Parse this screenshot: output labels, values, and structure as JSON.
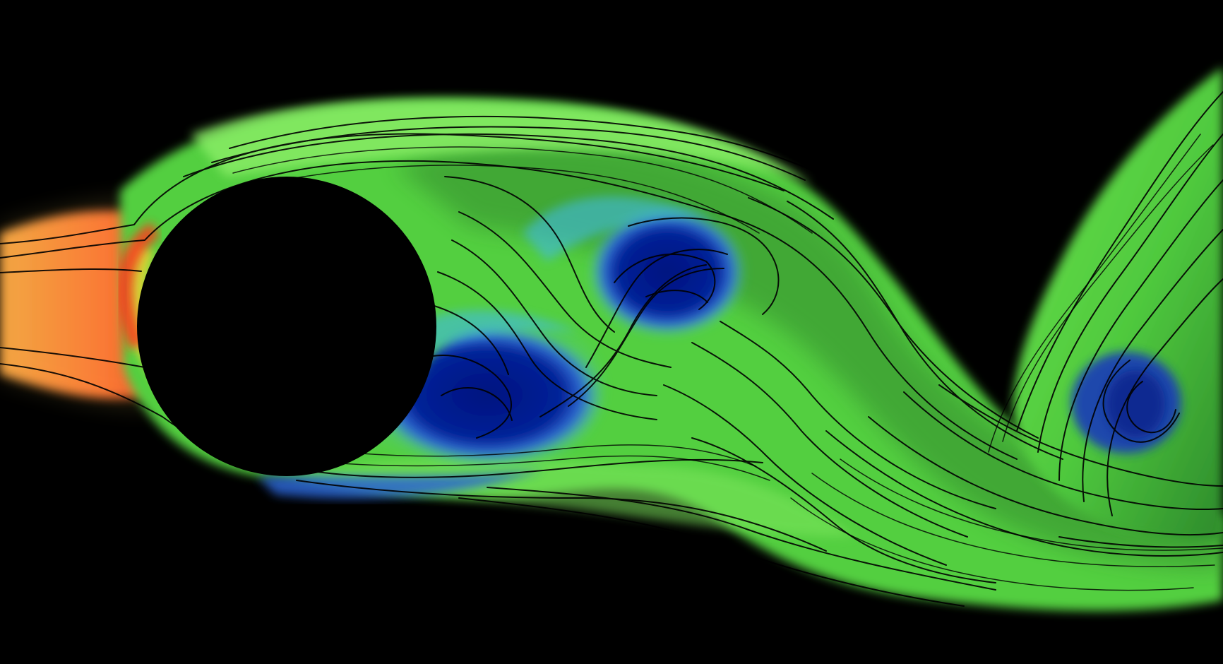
{
  "colors": {
    "background": "#000000",
    "obstacle": "#000000",
    "streamline": "#000000",
    "inflow_orange": "#f39a38",
    "inflow_red": "#e63420",
    "stagnation_yellow": "#e6de35",
    "flow_green": "#5fd648",
    "dark_green": "#2f8a2a",
    "light_green": "#8ee06a",
    "cyan": "#54c4ff",
    "blue": "#2757c8",
    "deep_blue": "#050d86"
  },
  "icons": {
    "obstacle": "circle-obstacle-icon",
    "flow": "streamline-flow-icon"
  }
}
